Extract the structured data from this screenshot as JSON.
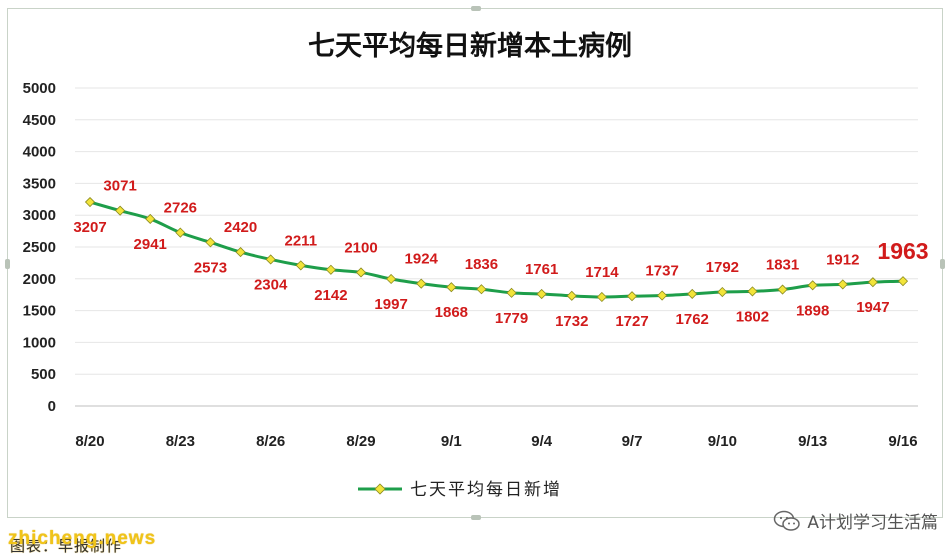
{
  "chart_data": {
    "type": "line",
    "title": "七天平均每日新增本土病例",
    "categories": [
      "8/20",
      "8/21",
      "8/22",
      "8/23",
      "8/24",
      "8/25",
      "8/26",
      "8/27",
      "8/28",
      "8/29",
      "8/30",
      "8/31",
      "9/1",
      "9/2",
      "9/3",
      "9/4",
      "9/5",
      "9/6",
      "9/7",
      "9/8",
      "9/9",
      "9/10",
      "9/11",
      "9/12",
      "9/13",
      "9/14",
      "9/15",
      "9/16"
    ],
    "x_tick_labels": [
      "8/20",
      "8/23",
      "8/26",
      "8/29",
      "9/1",
      "9/4",
      "9/7",
      "9/10",
      "9/13",
      "9/16"
    ],
    "series": [
      {
        "name": "七天平均每日新增",
        "color": "#1e9e4a",
        "marker_color": "#f2e43a",
        "values": [
          3207,
          3071,
          2941,
          2726,
          2573,
          2420,
          2304,
          2211,
          2142,
          2100,
          1997,
          1924,
          1868,
          1836,
          1779,
          1761,
          1732,
          1714,
          1727,
          1737,
          1762,
          1792,
          1802,
          1831,
          1898,
          1912,
          1947,
          1963
        ]
      }
    ],
    "ylim": [
      0,
      5000
    ],
    "yticks": [
      0,
      500,
      1000,
      1500,
      2000,
      2500,
      3000,
      3500,
      4000,
      4500,
      5000
    ],
    "grid": true,
    "legend": "bottom",
    "label_color": "#d11b1b"
  },
  "footer": {
    "watermark": "zhicheng.news",
    "underlay": "图表：早报制作",
    "source": "A计划学习生活篇",
    "source_icon": "wechat-icon"
  }
}
